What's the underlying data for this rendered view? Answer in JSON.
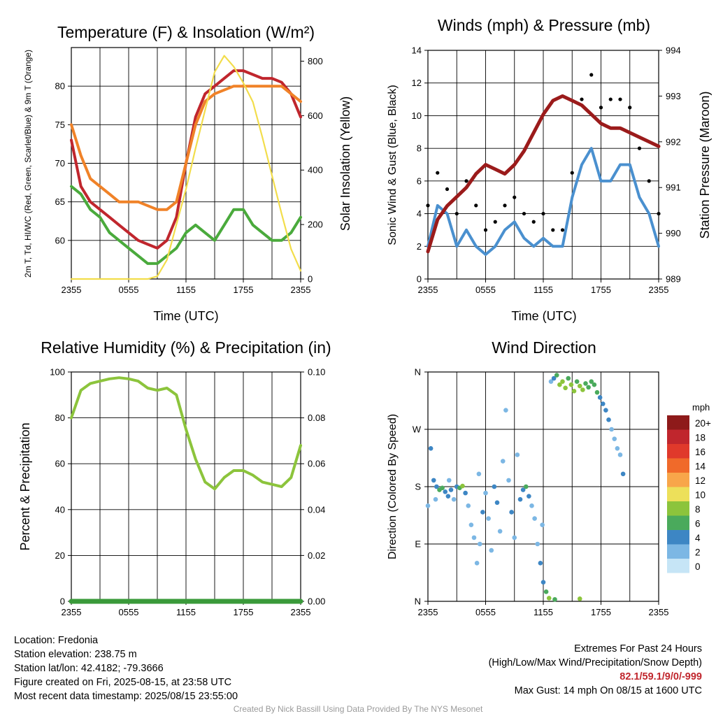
{
  "chart_data": [
    {
      "type": "line",
      "title": "Temperature (F) & Insolation (W/m²)",
      "xlabel": "Time (UTC)",
      "ylabel_left": "2m T, Td, HI/WC (Red, Green, Scarlet/Blue) & 9m T (Orange)",
      "ylabel_right": "Solar Insolation (Yellow)",
      "x_tick_labels": [
        "2355",
        "0555",
        "1155",
        "1755",
        "2355"
      ],
      "ylim_left": [
        55,
        85
      ],
      "y_ticks_left": [
        60,
        65,
        70,
        75,
        80
      ],
      "ylim_right": [
        0,
        850
      ],
      "y_ticks_right": [
        0,
        200,
        400,
        600,
        800
      ],
      "grid": true,
      "series": [
        {
          "name": "2m T",
          "color": "#c0262d",
          "axis": "left",
          "x": [
            0,
            1,
            2,
            3,
            4,
            5,
            6,
            7,
            8,
            9,
            10,
            11,
            12,
            13,
            14,
            15,
            16,
            17,
            18,
            19,
            20,
            21,
            22,
            23,
            24
          ],
          "values": [
            73,
            67,
            65,
            64,
            63,
            62,
            61,
            60,
            59.5,
            59,
            60,
            63,
            70,
            76,
            79,
            80,
            81,
            82,
            82,
            81.5,
            81,
            81,
            80.5,
            79,
            76
          ]
        },
        {
          "name": "2m Td",
          "color": "#4aaa3c",
          "axis": "left",
          "x": [
            0,
            1,
            2,
            3,
            4,
            5,
            6,
            7,
            8,
            9,
            10,
            11,
            12,
            13,
            14,
            15,
            16,
            17,
            18,
            19,
            20,
            21,
            22,
            23,
            24
          ],
          "values": [
            67,
            66,
            64,
            63,
            61,
            60,
            59,
            58,
            57,
            57,
            58,
            59,
            61,
            62,
            61,
            60,
            62,
            64,
            64,
            62,
            61,
            60,
            60,
            61,
            63
          ]
        },
        {
          "name": "9m T",
          "color": "#f08228",
          "axis": "left",
          "x": [
            0,
            1,
            2,
            3,
            4,
            5,
            6,
            7,
            8,
            9,
            10,
            11,
            12,
            13,
            14,
            15,
            16,
            17,
            18,
            19,
            20,
            21,
            22,
            23,
            24
          ],
          "values": [
            75,
            71,
            68,
            67,
            66,
            65,
            65,
            65,
            64.5,
            64,
            64,
            65,
            70,
            75,
            78,
            79,
            79.5,
            80,
            80,
            80,
            80,
            80,
            80,
            79,
            78
          ]
        },
        {
          "name": "Solar Insolation",
          "color": "#f2dd4b",
          "axis": "right",
          "x": [
            0,
            1,
            2,
            3,
            4,
            5,
            6,
            7,
            8,
            9,
            10,
            11,
            12,
            13,
            14,
            15,
            16,
            17,
            18,
            19,
            20,
            21,
            22,
            23,
            24
          ],
          "values": [
            0,
            0,
            0,
            0,
            0,
            0,
            0,
            0,
            0,
            10,
            70,
            200,
            330,
            480,
            620,
            760,
            820,
            780,
            720,
            650,
            520,
            380,
            240,
            110,
            30
          ]
        }
      ]
    },
    {
      "type": "line",
      "title": "Winds (mph) & Pressure (mb)",
      "xlabel": "Time (UTC)",
      "ylabel_left": "Sonic Wind & Gust (Blue, Black)",
      "ylabel_right": "Station Pressure (Maroon)",
      "x_tick_labels": [
        "2355",
        "0555",
        "1155",
        "1755",
        "2355"
      ],
      "ylim_left": [
        0,
        14
      ],
      "y_ticks_left": [
        0,
        2,
        4,
        6,
        8,
        10,
        12,
        14
      ],
      "ylim_right": [
        989,
        994
      ],
      "y_ticks_right": [
        989,
        990,
        991,
        992,
        993,
        994
      ],
      "grid": true,
      "series": [
        {
          "name": "Sonic Wind",
          "color": "#4a90cf",
          "axis": "left",
          "x": [
            0,
            1,
            2,
            3,
            4,
            5,
            6,
            7,
            8,
            9,
            10,
            11,
            12,
            13,
            14,
            15,
            16,
            17,
            18,
            19,
            20,
            21,
            22,
            23,
            24
          ],
          "values": [
            2,
            4.5,
            4,
            2,
            3,
            2,
            1.5,
            2,
            3,
            3.5,
            2.5,
            2,
            2.5,
            2,
            2,
            5,
            7,
            8,
            6,
            6,
            7,
            7,
            5,
            4,
            2
          ]
        },
        {
          "name": "Gust",
          "color": "#000000",
          "axis": "left",
          "x": [
            0,
            1,
            2,
            3,
            4,
            5,
            6,
            7,
            8,
            9,
            10,
            11,
            12,
            13,
            14,
            15,
            16,
            17,
            18,
            19,
            20,
            21,
            22,
            23,
            24
          ],
          "values": [
            4.5,
            6.5,
            5.5,
            4,
            6,
            4.5,
            3,
            3.5,
            4.5,
            5,
            4,
            3.5,
            4,
            3,
            3,
            6.5,
            11,
            12.5,
            10.5,
            11,
            11,
            10.5,
            8,
            6,
            4
          ]
        },
        {
          "name": "Station Pressure",
          "color": "#9b1b1b",
          "axis": "right",
          "x": [
            0,
            1,
            2,
            3,
            4,
            5,
            6,
            7,
            8,
            9,
            10,
            11,
            12,
            13,
            14,
            15,
            16,
            17,
            18,
            19,
            20,
            21,
            22,
            23,
            24
          ],
          "values": [
            989.6,
            990.3,
            990.6,
            990.8,
            991.0,
            991.3,
            991.5,
            991.4,
            991.3,
            991.5,
            991.8,
            992.2,
            992.6,
            992.9,
            993.0,
            992.9,
            992.8,
            992.6,
            992.4,
            992.3,
            992.3,
            992.2,
            992.1,
            992.0,
            991.9
          ]
        }
      ]
    },
    {
      "type": "line",
      "title": "Relative Humidity (%) & Precipitation (in)",
      "xlabel": "",
      "ylabel_left": "Percent & Precipitation",
      "x_tick_labels": [
        "2355",
        "0555",
        "1155",
        "1755",
        "2355"
      ],
      "ylim_left": [
        0,
        100
      ],
      "y_ticks_left": [
        0,
        20,
        40,
        60,
        80,
        100
      ],
      "ylim_right": [
        0,
        0.1
      ],
      "y_ticks_right": [
        "0.00",
        "0.02",
        "0.04",
        "0.06",
        "0.08",
        "0.10"
      ],
      "grid": true,
      "series": [
        {
          "name": "Relative Humidity",
          "color": "#8cc43c",
          "axis": "left",
          "x": [
            0,
            1,
            2,
            3,
            4,
            5,
            6,
            7,
            8,
            9,
            10,
            11,
            12,
            13,
            14,
            15,
            16,
            17,
            18,
            19,
            20,
            21,
            22,
            23,
            24
          ],
          "values": [
            80,
            92,
            95,
            96,
            97,
            97.5,
            97,
            96,
            93,
            92,
            93,
            90,
            75,
            62,
            52,
            49,
            54,
            57,
            57,
            55,
            52,
            51,
            50,
            54,
            68
          ]
        },
        {
          "name": "Precipitation",
          "color": "#3a9a3a",
          "axis": "right",
          "x": [
            0,
            24
          ],
          "values": [
            0,
            0
          ]
        }
      ]
    },
    {
      "type": "scatter",
      "title": "Wind Direction",
      "ylabel": "Direction (Colored By Speed)",
      "x_tick_labels": [
        "2355",
        "0555",
        "1155",
        "1755",
        "2355"
      ],
      "y_tick_labels": [
        "N",
        "E",
        "S",
        "W",
        "N"
      ],
      "ylim": [
        0,
        360
      ],
      "grid": true,
      "legend": {
        "title": "mph",
        "labels": [
          "20+",
          "18",
          "16",
          "14",
          "12",
          "10",
          "8",
          "6",
          "4",
          "2",
          "0"
        ],
        "colors": [
          "#8e1a1a",
          "#c0262d",
          "#e0392b",
          "#f06a2a",
          "#f8a64a",
          "#ede05a",
          "#8cc43c",
          "#4aaa5c",
          "#3d86c4",
          "#7cb7e4",
          "#c6e5f6"
        ]
      },
      "points": [
        {
          "x": 0,
          "y": 150,
          "s": 2
        },
        {
          "x": 0.3,
          "y": 240,
          "s": 3
        },
        {
          "x": 0.6,
          "y": 190,
          "s": 4
        },
        {
          "x": 0.9,
          "y": 180,
          "s": 3
        },
        {
          "x": 1.2,
          "y": 175,
          "s": 5
        },
        {
          "x": 1.5,
          "y": 178,
          "s": 6
        },
        {
          "x": 1.8,
          "y": 172,
          "s": 4
        },
        {
          "x": 2.1,
          "y": 165,
          "s": 3
        },
        {
          "x": 2.4,
          "y": 175,
          "s": 3
        },
        {
          "x": 2.7,
          "y": 160,
          "s": 2
        },
        {
          "x": 3.0,
          "y": 180,
          "s": 3
        },
        {
          "x": 3.3,
          "y": 178,
          "s": 5
        },
        {
          "x": 3.6,
          "y": 181,
          "s": 7
        },
        {
          "x": 3.9,
          "y": 170,
          "s": 4
        },
        {
          "x": 4.2,
          "y": 150,
          "s": 2
        },
        {
          "x": 4.5,
          "y": 120,
          "s": 1
        },
        {
          "x": 4.8,
          "y": 100,
          "s": 2
        },
        {
          "x": 5.1,
          "y": 60,
          "s": 1
        },
        {
          "x": 5.4,
          "y": 90,
          "s": 2
        },
        {
          "x": 5.7,
          "y": 140,
          "s": 3
        },
        {
          "x": 6.0,
          "y": 170,
          "s": 2
        },
        {
          "x": 6.3,
          "y": 130,
          "s": 1
        },
        {
          "x": 6.6,
          "y": 80,
          "s": 2
        },
        {
          "x": 6.9,
          "y": 180,
          "s": 4
        },
        {
          "x": 7.2,
          "y": 155,
          "s": 3
        },
        {
          "x": 7.5,
          "y": 110,
          "s": 2
        },
        {
          "x": 7.8,
          "y": 220,
          "s": 1
        },
        {
          "x": 8.1,
          "y": 300,
          "s": 1
        },
        {
          "x": 8.4,
          "y": 190,
          "s": 2
        },
        {
          "x": 8.7,
          "y": 140,
          "s": 3
        },
        {
          "x": 9.0,
          "y": 100,
          "s": 2
        },
        {
          "x": 9.3,
          "y": 230,
          "s": 1
        },
        {
          "x": 9.6,
          "y": 160,
          "s": 3
        },
        {
          "x": 9.9,
          "y": 175,
          "s": 4
        },
        {
          "x": 10.2,
          "y": 180,
          "s": 5
        },
        {
          "x": 10.5,
          "y": 165,
          "s": 3
        },
        {
          "x": 10.8,
          "y": 150,
          "s": 2
        },
        {
          "x": 11.1,
          "y": 130,
          "s": 2
        },
        {
          "x": 11.4,
          "y": 90,
          "s": 2
        },
        {
          "x": 11.7,
          "y": 60,
          "s": 3
        },
        {
          "x": 12.0,
          "y": 30,
          "s": 4
        },
        {
          "x": 12.3,
          "y": 15,
          "s": 5
        },
        {
          "x": 12.6,
          "y": 5,
          "s": 7
        },
        {
          "x": 12.8,
          "y": 345,
          "s": 2
        },
        {
          "x": 13.1,
          "y": 350,
          "s": 4
        },
        {
          "x": 13.4,
          "y": 355,
          "s": 6
        },
        {
          "x": 13.7,
          "y": 340,
          "s": 7
        },
        {
          "x": 14.0,
          "y": 345,
          "s": 8
        },
        {
          "x": 14.3,
          "y": 335,
          "s": 7
        },
        {
          "x": 14.6,
          "y": 350,
          "s": 6
        },
        {
          "x": 14.9,
          "y": 340,
          "s": 8
        },
        {
          "x": 15.2,
          "y": 330,
          "s": 7
        },
        {
          "x": 15.5,
          "y": 345,
          "s": 6
        },
        {
          "x": 15.8,
          "y": 338,
          "s": 7
        },
        {
          "x": 16.1,
          "y": 332,
          "s": 8
        },
        {
          "x": 16.4,
          "y": 342,
          "s": 6
        },
        {
          "x": 16.7,
          "y": 336,
          "s": 5
        },
        {
          "x": 17.0,
          "y": 345,
          "s": 5
        },
        {
          "x": 17.3,
          "y": 340,
          "s": 6
        },
        {
          "x": 17.6,
          "y": 328,
          "s": 5
        },
        {
          "x": 17.9,
          "y": 320,
          "s": 4
        },
        {
          "x": 18.2,
          "y": 310,
          "s": 4
        },
        {
          "x": 18.5,
          "y": 300,
          "s": 3
        },
        {
          "x": 18.8,
          "y": 285,
          "s": 3
        },
        {
          "x": 19.1,
          "y": 270,
          "s": 2
        },
        {
          "x": 19.4,
          "y": 255,
          "s": 2
        },
        {
          "x": 19.7,
          "y": 240,
          "s": 2
        },
        {
          "x": 20.0,
          "y": 230,
          "s": 2
        },
        {
          "x": 20.3,
          "y": 200,
          "s": 3
        },
        {
          "x": 13.2,
          "y": 3,
          "s": 6
        },
        {
          "x": 15.8,
          "y": 4,
          "s": 7
        },
        {
          "x": 11.9,
          "y": 120,
          "s": 2
        },
        {
          "x": 5.3,
          "y": 200,
          "s": 1
        },
        {
          "x": 2.2,
          "y": 190,
          "s": 2
        },
        {
          "x": 0.8,
          "y": 160,
          "s": 1
        }
      ]
    }
  ],
  "footer": {
    "location": "Location: Fredonia",
    "elevation": "Station elevation: 238.75 m",
    "latlon": "Station lat/lon: 42.4182; -79.3666",
    "created": "Figure created on Fri, 2025-08-15, at 23:58 UTC",
    "recent": "Most recent data timestamp: 2025/08/15 23:55:00",
    "extremes_title": "Extremes For Past 24 Hours",
    "extremes_desc": "(High/Low/Max Wind/Precipitation/Snow Depth)",
    "extremes_values": "82.1/59.1/9/0/-999",
    "max_gust": "Max Gust: 14 mph On 08/15 at 1600 UTC",
    "credit": "Created By Nick Bassill Using Data Provided By The NYS Mesonet"
  }
}
